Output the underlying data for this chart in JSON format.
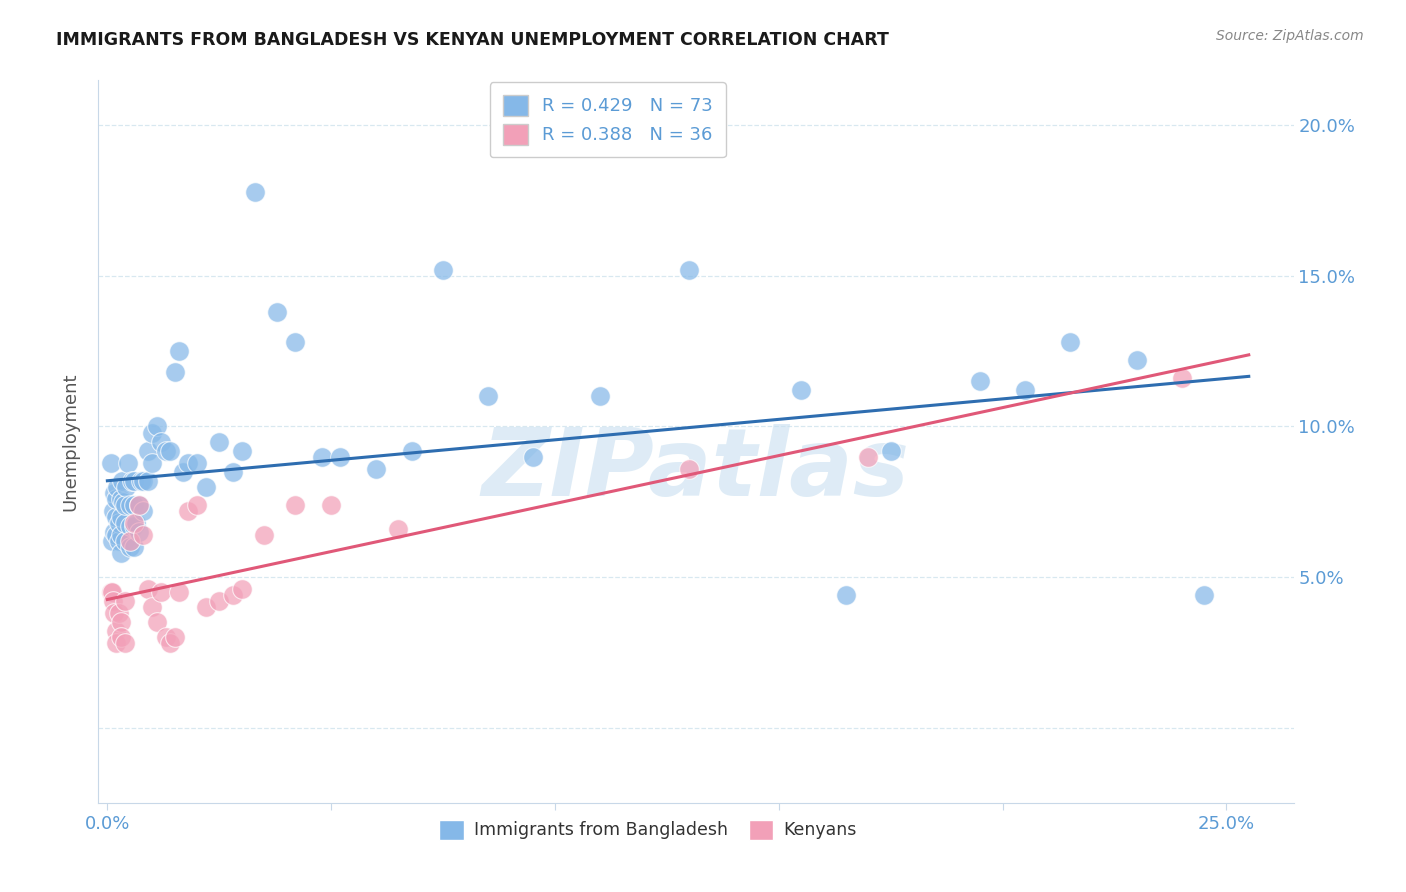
{
  "title": "IMMIGRANTS FROM BANGLADESH VS KENYAN UNEMPLOYMENT CORRELATION CHART",
  "source": "Source: ZipAtlas.com",
  "ylabel": "Unemployment",
  "xlim": [
    -0.002,
    0.265
  ],
  "ylim": [
    -0.025,
    0.215
  ],
  "watermark": "ZIPatlas",
  "legend_r1": "R = 0.429",
  "legend_n1": "N = 73",
  "legend_r2": "R = 0.388",
  "legend_n2": "N = 36",
  "blue_color": "#85B8E8",
  "pink_color": "#F2A0B8",
  "line_blue": "#2E6DB0",
  "line_pink": "#E05878",
  "text_color": "#5B9BD5",
  "title_color": "#1A1A1A",
  "source_color": "#888888",
  "grid_color": "#D8E8F0",
  "axis_color": "#C8D8E8",
  "ylabel_color": "#555555",
  "blue_x": [
    0.0008,
    0.001,
    0.0012,
    0.0015,
    0.0015,
    0.002,
    0.002,
    0.002,
    0.0022,
    0.0025,
    0.0025,
    0.003,
    0.003,
    0.003,
    0.003,
    0.0032,
    0.0035,
    0.004,
    0.004,
    0.004,
    0.0042,
    0.0045,
    0.005,
    0.005,
    0.005,
    0.0055,
    0.006,
    0.006,
    0.006,
    0.006,
    0.0065,
    0.007,
    0.007,
    0.0075,
    0.008,
    0.008,
    0.009,
    0.009,
    0.01,
    0.01,
    0.011,
    0.012,
    0.013,
    0.014,
    0.015,
    0.016,
    0.017,
    0.018,
    0.02,
    0.022,
    0.025,
    0.028,
    0.03,
    0.033,
    0.038,
    0.042,
    0.048,
    0.052,
    0.06,
    0.068,
    0.075,
    0.085,
    0.095,
    0.11,
    0.13,
    0.155,
    0.165,
    0.175,
    0.195,
    0.205,
    0.215,
    0.23,
    0.245
  ],
  "blue_y": [
    0.088,
    0.062,
    0.072,
    0.065,
    0.078,
    0.064,
    0.07,
    0.076,
    0.08,
    0.062,
    0.068,
    0.058,
    0.064,
    0.07,
    0.076,
    0.082,
    0.075,
    0.062,
    0.068,
    0.074,
    0.08,
    0.088,
    0.06,
    0.067,
    0.074,
    0.082,
    0.06,
    0.067,
    0.074,
    0.082,
    0.068,
    0.065,
    0.074,
    0.082,
    0.072,
    0.082,
    0.082,
    0.092,
    0.088,
    0.098,
    0.1,
    0.095,
    0.092,
    0.092,
    0.118,
    0.125,
    0.085,
    0.088,
    0.088,
    0.08,
    0.095,
    0.085,
    0.092,
    0.178,
    0.138,
    0.128,
    0.09,
    0.09,
    0.086,
    0.092,
    0.152,
    0.11,
    0.09,
    0.11,
    0.152,
    0.112,
    0.044,
    0.092,
    0.115,
    0.112,
    0.128,
    0.122,
    0.044
  ],
  "pink_x": [
    0.0008,
    0.001,
    0.0012,
    0.0015,
    0.002,
    0.002,
    0.0025,
    0.003,
    0.003,
    0.004,
    0.004,
    0.005,
    0.006,
    0.007,
    0.008,
    0.009,
    0.01,
    0.011,
    0.012,
    0.013,
    0.014,
    0.015,
    0.016,
    0.018,
    0.02,
    0.022,
    0.025,
    0.028,
    0.03,
    0.035,
    0.042,
    0.05,
    0.065,
    0.13,
    0.17,
    0.24
  ],
  "pink_y": [
    0.045,
    0.045,
    0.042,
    0.038,
    0.032,
    0.028,
    0.038,
    0.035,
    0.03,
    0.042,
    0.028,
    0.062,
    0.068,
    0.074,
    0.064,
    0.046,
    0.04,
    0.035,
    0.045,
    0.03,
    0.028,
    0.03,
    0.045,
    0.072,
    0.074,
    0.04,
    0.042,
    0.044,
    0.046,
    0.064,
    0.074,
    0.074,
    0.066,
    0.086,
    0.09,
    0.116
  ]
}
